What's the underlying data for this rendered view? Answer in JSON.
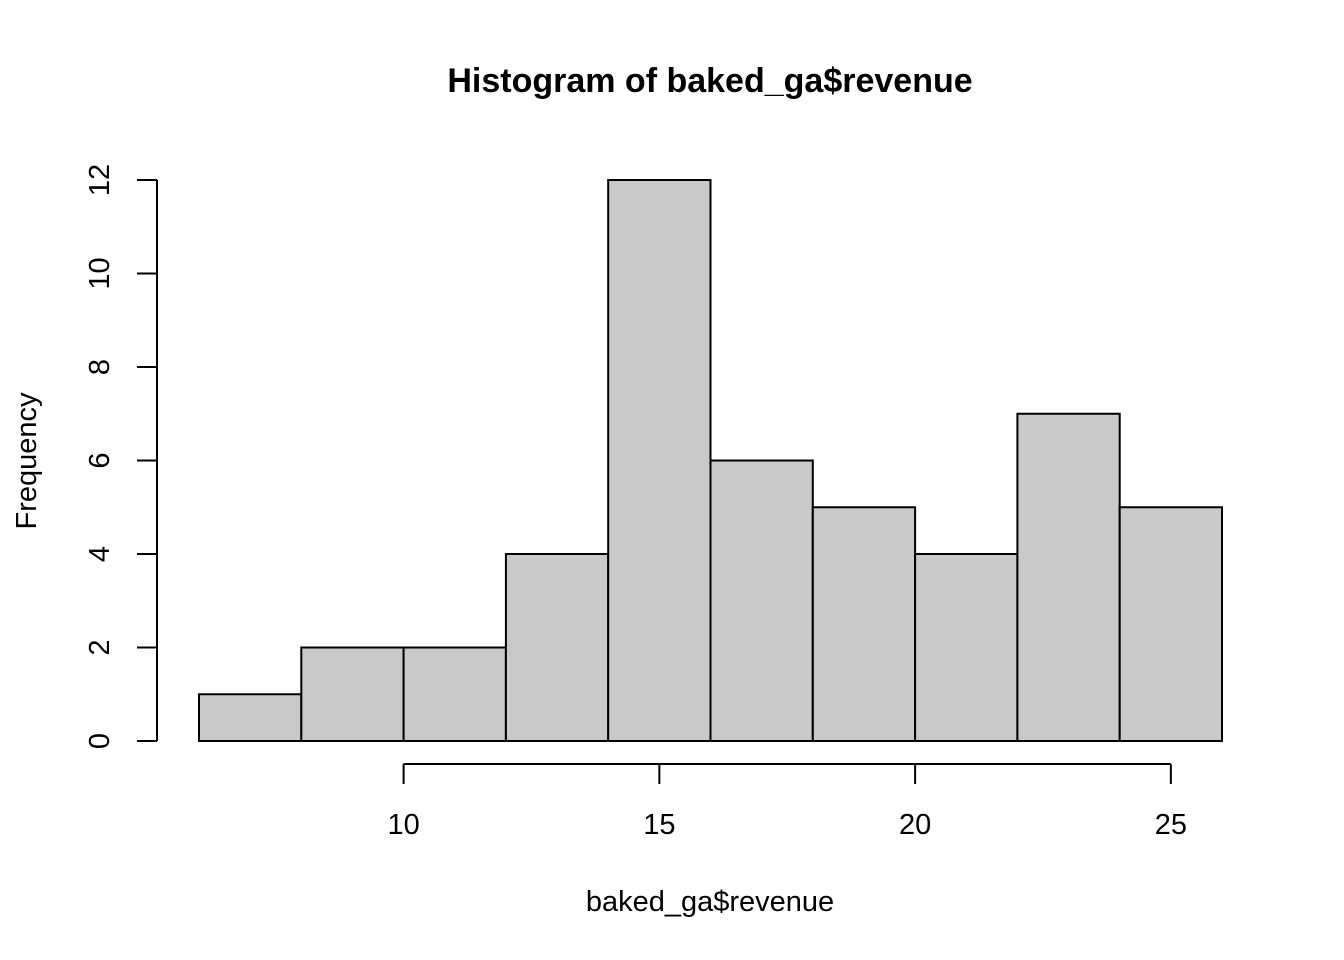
{
  "chart_data": {
    "type": "bar",
    "title": "Histogram of baked_ga$revenue",
    "xlabel": "baked_ga$revenue",
    "ylabel": "Frequency",
    "bins": [
      {
        "start": 6,
        "end": 8,
        "count": 1
      },
      {
        "start": 8,
        "end": 10,
        "count": 2
      },
      {
        "start": 10,
        "end": 12,
        "count": 2
      },
      {
        "start": 12,
        "end": 14,
        "count": 4
      },
      {
        "start": 14,
        "end": 16,
        "count": 12
      },
      {
        "start": 16,
        "end": 18,
        "count": 6
      },
      {
        "start": 18,
        "end": 20,
        "count": 5
      },
      {
        "start": 20,
        "end": 22,
        "count": 4
      },
      {
        "start": 22,
        "end": 24,
        "count": 7
      },
      {
        "start": 24,
        "end": 26,
        "count": 5
      }
    ],
    "x_ticks": [
      10,
      15,
      20,
      25
    ],
    "y_ticks": [
      0,
      2,
      4,
      6,
      8,
      10,
      12
    ],
    "xlim": [
      6,
      26
    ],
    "ylim": [
      0,
      12
    ],
    "bar_fill": "#c9c9c9",
    "grid": false,
    "legend": "none"
  }
}
